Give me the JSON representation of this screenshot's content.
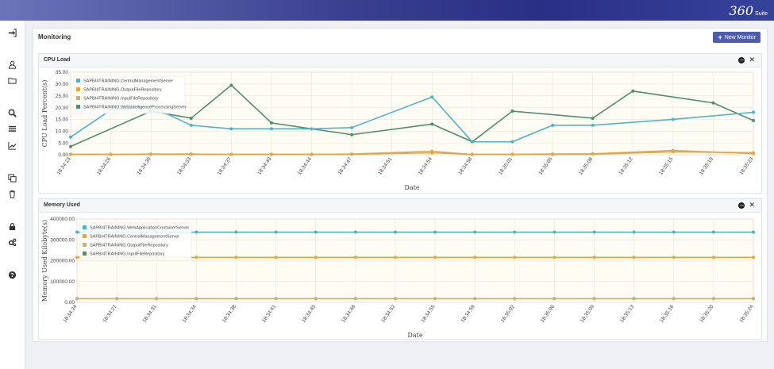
{
  "app": {
    "logo_text": "360",
    "logo_suffix": "Suite"
  },
  "sidebar": {
    "icons": [
      "sign-in-icon",
      "user-icon",
      "folder-icon",
      "search-icon",
      "list-icon",
      "line-chart-icon",
      "copy-icon",
      "trash-icon",
      "lock-icon",
      "cogs-icon",
      "help-icon"
    ]
  },
  "page": {
    "title": "Monitoring",
    "new_button": "New Monitor"
  },
  "colors": {
    "teal": "#4fb3c8",
    "orange": "#e8a53a",
    "tan": "#c9b27a",
    "green": "#4e8f6f",
    "accent": "#4e5cae"
  },
  "chart_data": [
    {
      "type": "line",
      "title": "CPU Load",
      "xlabel": "Date",
      "ylabel": "CPU Load Percent(s)",
      "ylim": [
        0,
        35
      ],
      "yticks": [
        "0.00",
        "5.00",
        "10.00",
        "15.00",
        "20.00",
        "25.00",
        "30.00",
        "35.00"
      ],
      "categories": [
        "18:34:23",
        "18:34:26",
        "18:34:30",
        "18:34:33",
        "18:34:37",
        "18:34:40",
        "18:34:44",
        "18:34:47",
        "18:34:51",
        "18:34:54",
        "18:34:58",
        "18:35:01",
        "18:35:05",
        "18:35:08",
        "18:35:12",
        "18:35:15",
        "18:35:19",
        "18:35:23"
      ],
      "legend": "top-left",
      "grid": true,
      "series": [
        {
          "name": "SAPBI4TRAINING.CentralManagementServer",
          "color": "#4fb3c8",
          "values": [
            7.5,
            19,
            20.5,
            12.5,
            11,
            11,
            11,
            11.5,
            null,
            24.5,
            5.5,
            5.5,
            12.5,
            12.5,
            null,
            15,
            null,
            18
          ]
        },
        {
          "name": "SAPBI4TRAINING.OutputFileRepository",
          "color": "#e8a53a",
          "values": [
            0.2,
            0.2,
            0.2,
            0.2,
            0.2,
            0.2,
            0.2,
            0.2,
            null,
            0.8,
            0.2,
            0.2,
            0.3,
            0.4,
            null,
            1.8,
            null,
            0.5
          ]
        },
        {
          "name": "SAPBI4TRAINING.InputFileRepository",
          "color": "#c9b27a",
          "values": [
            0.1,
            0.1,
            0.3,
            0.3,
            0.1,
            0.1,
            0.1,
            0.3,
            null,
            1.5,
            0.1,
            0.1,
            0.1,
            0.2,
            null,
            1.2,
            null,
            0.9
          ]
        },
        {
          "name": "SAPBI4TRAINING.WebIntelligenceProcessingServer",
          "color": "#4e8f6f",
          "values": [
            3.5,
            null,
            18.5,
            15.5,
            29.5,
            13.5,
            null,
            8.5,
            null,
            13,
            5.5,
            18.5,
            null,
            15.5,
            27,
            null,
            22,
            14.5
          ]
        }
      ]
    },
    {
      "type": "line",
      "title": "Memory Used",
      "xlabel": "Date",
      "ylabel": "Memory Used Kilobyte(s)",
      "ylim": [
        0,
        400000
      ],
      "yticks": [
        "0.00",
        "100000.00",
        "200000.00",
        "300000.00",
        "400000.00"
      ],
      "categories": [
        "18:34:24",
        "18:34:27",
        "18:34:31",
        "18:34:34",
        "18:34:38",
        "18:34:41",
        "18:34:45",
        "18:34:48",
        "18:34:52",
        "18:34:55",
        "18:34:59",
        "18:35:02",
        "18:35:06",
        "18:35:09",
        "18:35:13",
        "18:35:16",
        "18:35:20",
        "18:35:24"
      ],
      "legend": "top-left",
      "grid": true,
      "series": [
        {
          "name": "SAPBI4TRAINING.WebApplicationContainerServer",
          "color": "#4fb3c8",
          "values": [
            337000,
            337000,
            337000,
            337000,
            337000,
            337000,
            337000,
            337000,
            337000,
            337000,
            337000,
            337000,
            337000,
            337000,
            337000,
            337000,
            337000,
            337000
          ]
        },
        {
          "name": "SAPBI4TRAINING.CentralManagementServer",
          "color": "#e8a53a",
          "values": [
            216000,
            216000,
            216000,
            216000,
            216000,
            216000,
            216000,
            216000,
            216000,
            216000,
            216000,
            216000,
            216000,
            216000,
            216000,
            216000,
            216000,
            216000
          ]
        },
        {
          "name": "SAPBI4TRAINING.OutputFileRepository",
          "color": "#c9b27a",
          "values": [
            18000,
            18000,
            18000,
            18000,
            18000,
            18000,
            18000,
            18000,
            18000,
            18000,
            18000,
            18000,
            18000,
            18000,
            18000,
            18000,
            18000,
            18000
          ]
        },
        {
          "name": "SAPBI4TRAINING.InputFileRepository",
          "color": "#4e8f6f",
          "values": [
            18000,
            18000,
            18000,
            18000,
            18000,
            18000,
            18000,
            18000,
            18000,
            18000,
            18000,
            18000,
            18000,
            18000,
            18000,
            18000,
            18000,
            18000
          ]
        }
      ]
    }
  ]
}
